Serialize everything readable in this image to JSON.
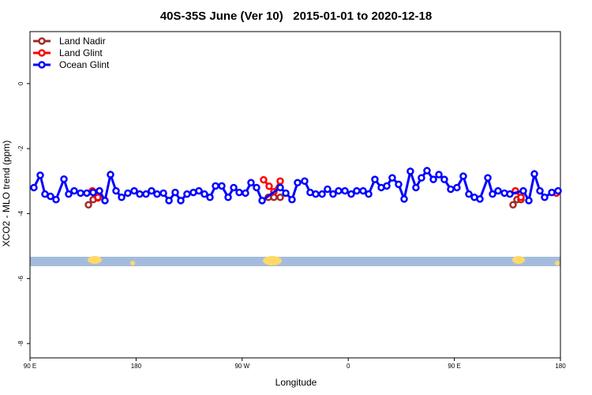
{
  "chart_data": {
    "type": "line",
    "title": "40S-35S June (Ver 10)   2015-01-01 to 2020-12-18",
    "x_label": "Longitude",
    "y_label": "XCO2 - MLO trend (ppm)",
    "xlim": [
      90,
      540
    ],
    "xticks": [
      {
        "value": 90,
        "label": "90 E"
      },
      180,
      {
        "value": 270,
        "label": "90 W"
      },
      {
        "value": 360,
        "label": "0"
      },
      {
        "value": 450,
        "label": "90 E"
      },
      {
        "value": 540,
        "label": "180"
      }
    ],
    "ylim": [
      -8.44,
      1.6
    ],
    "yticks": [
      0,
      -2,
      -4,
      -6,
      -8
    ],
    "legend": "top-left",
    "series": [
      {
        "name": "Land Nadir",
        "color": "#a52a2a",
        "x": [
          139.6,
          143.6,
          147.6,
          null,
          292.2,
          296.9,
          302.3,
          null,
          499.8,
          503.2,
          506.5
        ],
        "values": [
          -3.73,
          -3.57,
          -3.52,
          null,
          -3.5,
          -3.5,
          -3.5,
          null,
          -3.73,
          -3.57,
          -3.57
        ]
      },
      {
        "name": "Land Glint",
        "color": "#ff0000",
        "x": [
          142.9,
          147.6,
          null,
          288.2,
          292.9,
          296.9,
          302.3,
          null,
          501.8,
          506.5,
          null,
          536.6
        ],
        "values": [
          -3.3,
          -3.5,
          null,
          -2.96,
          -3.16,
          -3.33,
          -3.0,
          null,
          -3.3,
          -3.5,
          null,
          -3.37
        ]
      },
      {
        "name": "Ocean Glint",
        "color": "#0000ff",
        "x": [
          93.3,
          98.7,
          102.7,
          107.4,
          112.1,
          118.8,
          122.8,
          127.5,
          132.9,
          138.2,
          143.6,
          148.9,
          153.6,
          158.3,
          163,
          167.7,
          173,
          178.4,
          183.1,
          188.4,
          193.1,
          197.8,
          203.2,
          207.9,
          213.2,
          217.9,
          223.2,
          228.6,
          233.3,
          238,
          242.7,
          247.4,
          252.7,
          258.1,
          262.8,
          267.5,
          272.8,
          277.5,
          282.2,
          286.9,
          302.3,
          307,
          312.3,
          317,
          323,
          327.7,
          332.4,
          337.8,
          342.4,
          347.1,
          351.8,
          357.2,
          362.5,
          367.2,
          372.6,
          377.3,
          382.6,
          388,
          392.7,
          397.3,
          402.7,
          407.4,
          412.7,
          417.4,
          422.1,
          426.8,
          432.2,
          436.9,
          441.5,
          446.9,
          452.2,
          457.6,
          462.3,
          467,
          471.7,
          478.4,
          482.4,
          487.1,
          492.5,
          497.1,
          508.5,
          513.2,
          517.9,
          522.6,
          526.6,
          532.7,
          538
        ],
        "values": [
          -3.2,
          -2.82,
          -3.4,
          -3.47,
          -3.57,
          -2.94,
          -3.4,
          -3.3,
          -3.37,
          -3.37,
          -3.35,
          -3.3,
          -3.6,
          -2.8,
          -3.3,
          -3.5,
          -3.37,
          -3.3,
          -3.4,
          -3.4,
          -3.3,
          -3.4,
          -3.37,
          -3.6,
          -3.35,
          -3.6,
          -3.4,
          -3.35,
          -3.3,
          -3.4,
          -3.5,
          -3.15,
          -3.15,
          -3.5,
          -3.2,
          -3.35,
          -3.37,
          -3.05,
          -3.2,
          -3.6,
          -3.2,
          -3.37,
          -3.57,
          -3.05,
          -3.0,
          -3.35,
          -3.4,
          -3.4,
          -3.25,
          -3.4,
          -3.3,
          -3.3,
          -3.4,
          -3.3,
          -3.3,
          -3.4,
          -2.95,
          -3.2,
          -3.15,
          -2.9,
          -3.1,
          -3.55,
          -2.7,
          -3.2,
          -2.9,
          -2.68,
          -2.95,
          -2.8,
          -2.95,
          -3.25,
          -3.2,
          -2.85,
          -3.4,
          -3.5,
          -3.55,
          -2.9,
          -3.4,
          -3.3,
          -3.37,
          -3.4,
          -3.3,
          -3.6,
          -2.78,
          -3.3,
          -3.5,
          -3.35,
          -3.3
        ]
      }
    ]
  }
}
